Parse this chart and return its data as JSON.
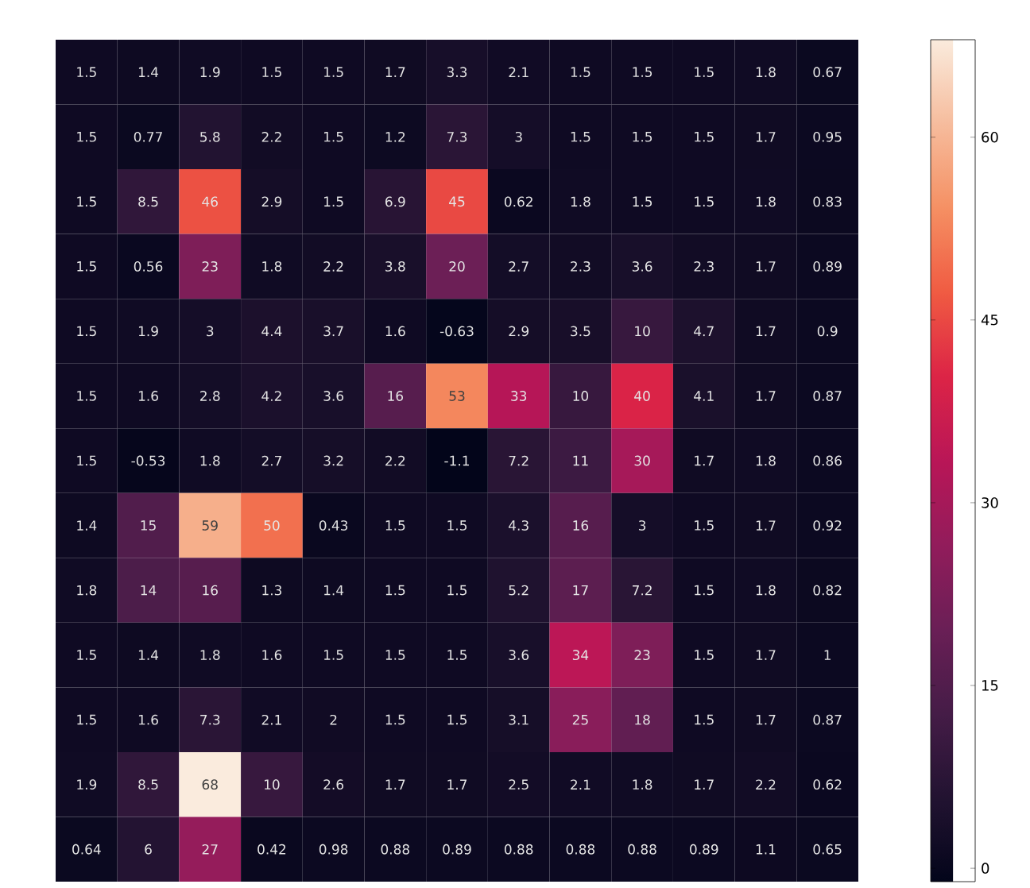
{
  "chart_data": {
    "type": "heatmap",
    "categories": [
      null,
      null,
      null,
      null,
      null,
      null,
      null,
      null,
      null,
      null,
      null,
      null,
      null
    ],
    "y_categories": [
      null,
      null,
      null,
      null,
      null,
      null,
      null,
      null,
      null,
      null,
      null,
      null,
      null
    ],
    "cells": [
      [
        1.5,
        1.4,
        1.9,
        1.5,
        1.5,
        1.7,
        3.3,
        2.1,
        1.5,
        1.5,
        1.5,
        1.8,
        0.67
      ],
      [
        1.5,
        0.77,
        5.8,
        2.2,
        1.5,
        1.2,
        7.3,
        3,
        1.5,
        1.5,
        1.5,
        1.7,
        0.95
      ],
      [
        1.5,
        8.5,
        46,
        2.9,
        1.5,
        6.9,
        45,
        0.62,
        1.8,
        1.5,
        1.5,
        1.8,
        0.83
      ],
      [
        1.5,
        0.56,
        23,
        1.8,
        2.2,
        3.8,
        20,
        2.7,
        2.3,
        3.6,
        2.3,
        1.7,
        0.89
      ],
      [
        1.5,
        1.9,
        3,
        4.4,
        3.7,
        1.6,
        -0.63,
        2.9,
        3.5,
        10,
        4.7,
        1.7,
        0.9
      ],
      [
        1.5,
        1.6,
        2.8,
        4.2,
        3.6,
        16,
        53,
        33,
        10,
        40,
        4.1,
        1.7,
        0.87
      ],
      [
        1.5,
        -0.53,
        1.8,
        2.7,
        3.2,
        2.2,
        -1.1,
        7.2,
        11,
        30,
        1.7,
        1.8,
        0.86
      ],
      [
        1.4,
        15,
        59,
        50,
        0.43,
        1.5,
        1.5,
        4.3,
        16,
        3,
        1.5,
        1.7,
        0.92
      ],
      [
        1.8,
        14,
        16,
        1.3,
        1.4,
        1.5,
        1.5,
        5.2,
        17,
        7.2,
        1.5,
        1.8,
        0.82
      ],
      [
        1.5,
        1.4,
        1.8,
        1.6,
        1.5,
        1.5,
        1.5,
        3.6,
        34,
        23,
        1.5,
        1.7,
        1
      ],
      [
        1.5,
        1.6,
        7.3,
        2.1,
        2,
        1.5,
        1.5,
        3.1,
        25,
        18,
        1.5,
        1.7,
        0.87
      ],
      [
        1.9,
        8.5,
        68,
        10,
        2.6,
        1.7,
        1.7,
        2.5,
        2.1,
        1.8,
        1.7,
        2.2,
        0.62
      ],
      [
        0.64,
        6,
        27,
        0.42,
        0.98,
        0.88,
        0.89,
        0.88,
        0.88,
        0.88,
        0.89,
        1.1,
        0.65
      ]
    ],
    "data_labels": true,
    "clim": [
      -1.1,
      68
    ],
    "cticks": [
      0,
      15,
      30,
      45,
      60
    ]
  }
}
